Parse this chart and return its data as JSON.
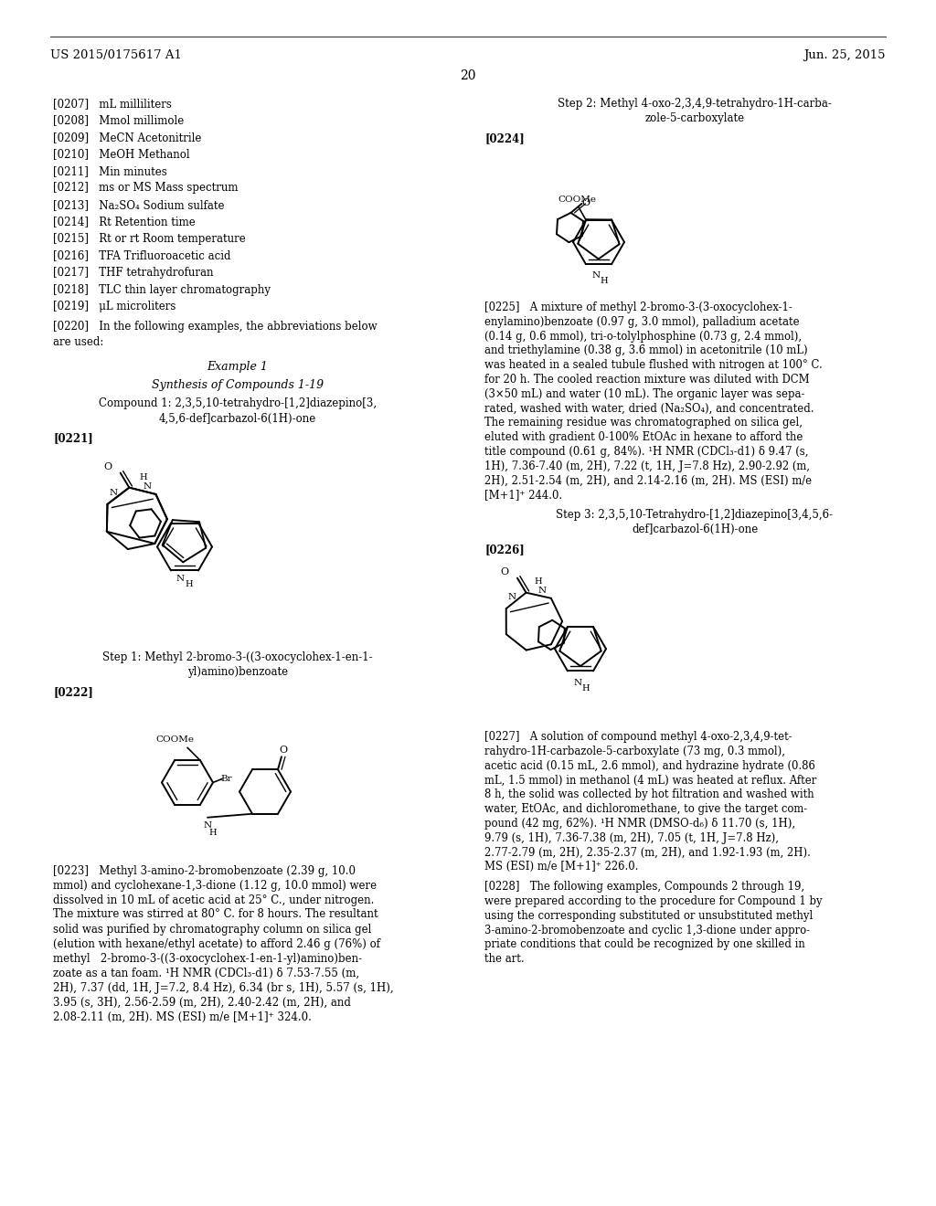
{
  "background_color": "#ffffff",
  "page_number": "20",
  "header_left": "US 2015/0175617 A1",
  "header_right": "Jun. 25, 2015",
  "abbrevs": [
    "[0207]   mL milliliters",
    "[0208]   Mmol millimole",
    "[0209]   MeCN Acetonitrile",
    "[0210]   MeOH Methanol",
    "[0211]   Min minutes",
    "[0212]   ms or MS Mass spectrum",
    "[0213]   Na₂SO₄ Sodium sulfate",
    "[0214]   Rt Retention time",
    "[0215]   Rt or rt Room temperature",
    "[0216]   TFA Trifluoroacetic acid",
    "[0217]   THF tetrahydrofuran",
    "[0218]   TLC thin layer chromatography",
    "[0219]   μL microliters"
  ],
  "para0220_line1": "[0220]   In the following examples, the abbreviations below",
  "para0220_line2": "are used:",
  "example1_header": "Example 1",
  "synthesis_header": "Synthesis of Compounds 1-19",
  "compound1_line1": "Compound 1: 2,3,5,10-tetrahydro-[1,2]diazepino[3,",
  "compound1_line2": "4,5,6-def]carbazol-6(1H)-one",
  "para0221": "[0221]",
  "step1_line1": "Step 1: Methyl 2-bromo-3-((3-oxocyclohex-1-en-1-",
  "step1_line2": "yl)amino)benzoate",
  "para0222": "[0222]",
  "para0223_lines": [
    "[0223]   Methyl 3-amino-2-bromobenzoate (2.39 g, 10.0",
    "mmol) and cyclohexane-1,3-dione (1.12 g, 10.0 mmol) were",
    "dissolved in 10 mL of acetic acid at 25° C., under nitrogen.",
    "The mixture was stirred at 80° C. for 8 hours. The resultant",
    "solid was purified by chromatography column on silica gel",
    "(elution with hexane/ethyl acetate) to afford 2.46 g (76%) of",
    "methyl   2-bromo-3-((3-oxocyclohex-1-en-1-yl)amino)ben-",
    "zoate as a tan foam. ¹H NMR (CDCl₃-d1) δ 7.53-7.55 (m,",
    "2H), 7.37 (dd, 1H, J=7.2, 8.4 Hz), 6.34 (br s, 1H), 5.57 (s, 1H),",
    "3.95 (s, 3H), 2.56-2.59 (m, 2H), 2.40-2.42 (m, 2H), and",
    "2.08-2.11 (m, 2H). MS (ESI) m/e [M+1]⁺ 324.0."
  ],
  "step2_line1": "Step 2: Methyl 4-oxo-2,3,4,9-tetrahydro-1H-carba-",
  "step2_line2": "zole-5-carboxylate",
  "para0224": "[0224]",
  "para0225_lines": [
    "[0225]   A mixture of methyl 2-bromo-3-(3-oxocyclohex-1-",
    "enylamino)benzoate (0.97 g, 3.0 mmol), palladium acetate",
    "(0.14 g, 0.6 mmol), tri-o-tolylphosphine (0.73 g, 2.4 mmol),",
    "and triethylamine (0.38 g, 3.6 mmol) in acetonitrile (10 mL)",
    "was heated in a sealed tubule flushed with nitrogen at 100° C.",
    "for 20 h. The cooled reaction mixture was diluted with DCM",
    "(3×50 mL) and water (10 mL). The organic layer was sepa-",
    "rated, washed with water, dried (Na₂SO₄), and concentrated.",
    "The remaining residue was chromatographed on silica gel,",
    "eluted with gradient 0-100% EtOAc in hexane to afford the",
    "title compound (0.61 g, 84%). ¹H NMR (CDCl₃-d1) δ 9.47 (s,",
    "1H), 7.36-7.40 (m, 2H), 7.22 (t, 1H, J=7.8 Hz), 2.90-2.92 (m,",
    "2H), 2.51-2.54 (m, 2H), and 2.14-2.16 (m, 2H). MS (ESI) m/e",
    "[M+1]⁺ 244.0."
  ],
  "step3_line1": "Step 3: 2,3,5,10-Tetrahydro-[1,2]diazepino[3,4,5,6-",
  "step3_line2": "def]carbazol-6(1H)-one",
  "para0226": "[0226]",
  "para0227_lines": [
    "[0227]   A solution of compound methyl 4-oxo-2,3,4,9-tet-",
    "rahydro-1H-carbazole-5-carboxylate (73 mg, 0.3 mmol),",
    "acetic acid (0.15 mL, 2.6 mmol), and hydrazine hydrate (0.86",
    "mL, 1.5 mmol) in methanol (4 mL) was heated at reflux. After",
    "8 h, the solid was collected by hot filtration and washed with",
    "water, EtOAc, and dichloromethane, to give the target com-",
    "pound (42 mg, 62%). ¹H NMR (DMSO-d₆) δ 11.70 (s, 1H),",
    "9.79 (s, 1H), 7.36-7.38 (m, 2H), 7.05 (t, 1H, J=7.8 Hz),",
    "2.77-2.79 (m, 2H), 2.35-2.37 (m, 2H), and 1.92-1.93 (m, 2H).",
    "MS (ESI) m/e [M+1]⁺ 226.0."
  ],
  "para0228_lines": [
    "[0228]   The following examples, Compounds 2 through 19,",
    "were prepared according to the procedure for Compound 1 by",
    "using the corresponding substituted or unsubstituted methyl",
    "3-amino-2-bromobenzoate and cyclic 1,3-dione under appro-",
    "priate conditions that could be recognized by one skilled in",
    "the art."
  ]
}
